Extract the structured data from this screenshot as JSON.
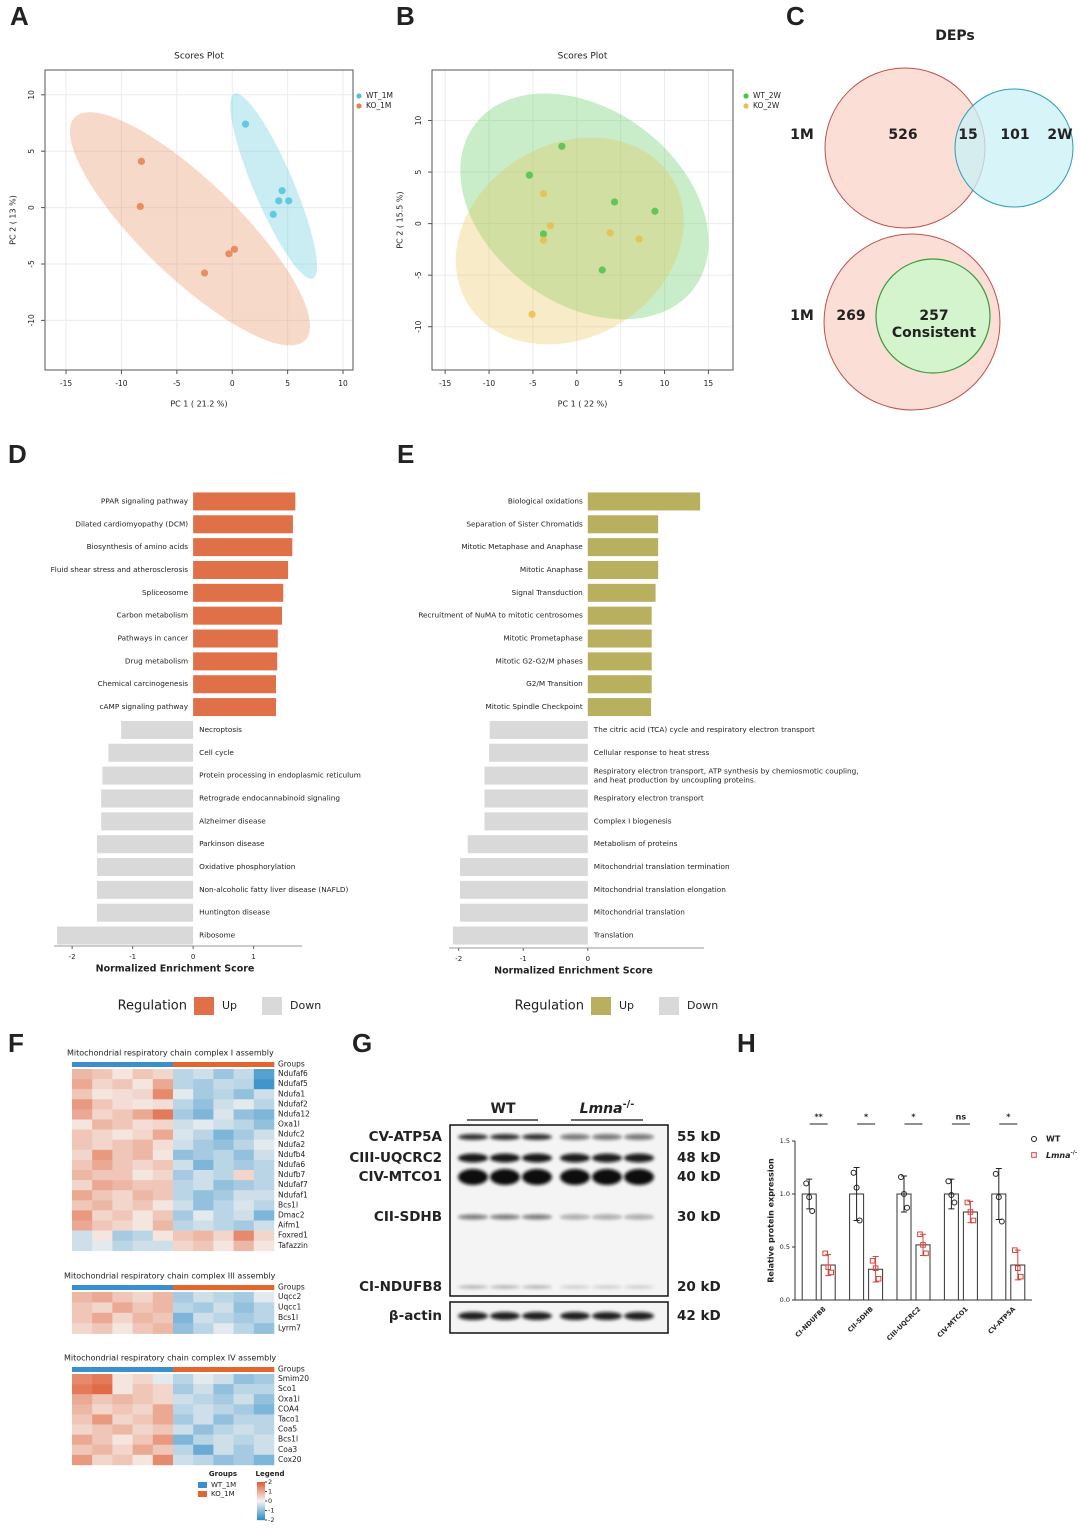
{
  "chart_data": [
    {
      "panel": "A",
      "type": "scatter",
      "title": "Scores Plot",
      "x_label": "PC 1 ( 21.2 %)",
      "y_label": "PC 2 ( 13 %)",
      "xlim": [
        -16.9,
        10.9
      ],
      "ylim": [
        -14.4,
        12.2
      ],
      "xticks": [
        -15,
        -10,
        -5,
        0,
        5,
        10
      ],
      "yticks": [
        -10,
        -5,
        0,
        5,
        10
      ],
      "grid": true,
      "series": [
        {
          "name": "WT_1M",
          "color": "#4fc3dc",
          "x": [
            1.2,
            4.5,
            4.2,
            5.1,
            3.7
          ],
          "y": [
            7.4,
            1.5,
            0.6,
            0.6,
            -0.6
          ]
        },
        {
          "name": "KO_1M",
          "color": "#e5804f",
          "x": [
            -8.2,
            -8.3,
            0.2,
            -0.3,
            -2.5
          ],
          "y": [
            4.1,
            0.1,
            -3.7,
            -4.1,
            -5.8
          ]
        }
      ]
    },
    {
      "panel": "B",
      "type": "scatter",
      "title": "Scores Plot",
      "x_label": "PC 1 ( 22 %)",
      "y_label": "PC 2 ( 15.5 %)",
      "xlim": [
        -16.5,
        17.8
      ],
      "ylim": [
        -14.2,
        14.9
      ],
      "xticks": [
        -15,
        -10,
        -5,
        0,
        5,
        10,
        15
      ],
      "yticks": [
        -10,
        -5,
        0,
        5,
        10
      ],
      "grid": true,
      "series": [
        {
          "name": "WT_2W",
          "color": "#4cc24c",
          "x": [
            -1.7,
            -5.4,
            4.3,
            8.9,
            -3.8,
            2.9
          ],
          "y": [
            7.5,
            4.7,
            2.1,
            1.2,
            -1.0,
            -4.5
          ]
        },
        {
          "name": "KO_2W",
          "color": "#e8c04a",
          "x": [
            -3.8,
            -3.0,
            -3.8,
            3.8,
            7.1,
            -5.1
          ],
          "y": [
            2.9,
            -0.2,
            -1.6,
            -0.9,
            -1.5,
            -8.8
          ]
        }
      ]
    },
    {
      "panel": "C",
      "type": "venn",
      "title": "DEPs",
      "diagrams": [
        {
          "sets": [
            "1M",
            "2W"
          ],
          "values": [
            526,
            15,
            101
          ]
        },
        {
          "sets": [
            "1M"
          ],
          "values": [
            269,
            257
          ],
          "annotation": "Consistent"
        }
      ]
    },
    {
      "panel": "D",
      "type": "bar",
      "orientation": "horizontal",
      "x_label": "Normalized Enrichment Score",
      "xlim": [
        -2.3,
        1.8
      ],
      "xticks": [
        -2,
        -1,
        0,
        1
      ],
      "categories": [
        "PPAR signaling pathway",
        "Dilated cardiomyopathy (DCM)",
        "Biosynthesis of amino acids",
        "Fluid shear stress and atherosclerosis",
        "Spliceosome",
        "Carbon metabolism",
        "Pathways in cancer",
        "Drug metabolism",
        "Chemical carcinogenesis",
        "cAMP signaling pathway",
        "Necroptosis",
        "Cell cycle",
        "Protein processing in endoplasmic reticulum",
        "Retrograde endocannabinoid signaling",
        "Alzheimer disease",
        "Parkinson disease",
        "Oxidative phosphorylation",
        "Non-alcoholic fatty liver disease (NAFLD)",
        "Huntington disease",
        "Ribosome"
      ],
      "values": [
        1.69,
        1.65,
        1.64,
        1.57,
        1.49,
        1.47,
        1.4,
        1.39,
        1.37,
        1.37,
        -1.19,
        -1.4,
        -1.5,
        -1.52,
        -1.52,
        -1.59,
        -1.59,
        -1.59,
        -1.59,
        -2.25
      ],
      "legend": {
        "title": "Regulation",
        "entries": [
          {
            "name": "Up",
            "color": "#e07048"
          },
          {
            "name": "Down",
            "color": "#d9d9d9"
          }
        ]
      }
    },
    {
      "panel": "E",
      "type": "bar",
      "orientation": "horizontal",
      "x_label": "Normalized Enrichment Score",
      "xlim": [
        -2.15,
        1.8
      ],
      "xticks": [
        -2,
        -1,
        0
      ],
      "categories": [
        "Biological oxidations",
        "Separation of Sister Chromatids",
        "Mitotic Metaphase and Anaphase",
        "Mitotic Anaphase",
        "Signal Transduction",
        "Recruitment of NuMA to mitotic centrosomes",
        "Mitotic Prometaphase",
        "Mitotic G2-G2/M phases",
        "G2/M Transition",
        "Mitotic Spindle Checkpoint",
        "The citric acid (TCA) cycle and respiratory electron transport",
        "Cellular response to heat stress",
        "Respiratory electron transport, ATP synthesis by chemiosmotic coupling, and heat production by uncoupling proteins.",
        "Respiratory electron transport",
        "Complex I biogenesis",
        "Metabolism of proteins",
        "Mitochondrial translation termination",
        "Mitochondrial translation elongation",
        "Mitochondrial translation",
        "Translation"
      ],
      "values": [
        1.74,
        1.09,
        1.09,
        1.09,
        1.05,
        0.99,
        0.99,
        0.99,
        0.99,
        0.98,
        -1.52,
        -1.53,
        -1.6,
        -1.6,
        -1.6,
        -1.86,
        -1.98,
        -1.98,
        -1.98,
        -2.09
      ],
      "legend": {
        "title": "Regulation",
        "entries": [
          {
            "name": "Up",
            "color": "#b8b05e"
          },
          {
            "name": "Down",
            "color": "#d9d9d9"
          }
        ]
      }
    },
    {
      "panel": "F",
      "type": "heatmap",
      "column_label": "Groups",
      "column_groups": [
        "WT_1M",
        "WT_1M",
        "WT_1M",
        "WT_1M",
        "WT_1M",
        "KO_1M",
        "KO_1M",
        "KO_1M",
        "KO_1M",
        "KO_1M"
      ],
      "groups": [
        {
          "name": "WT_1M",
          "color": "#3a8fd0"
        },
        {
          "name": "KO_1M",
          "color": "#e4652d"
        }
      ],
      "groups_title": "Groups",
      "legend_title": "Legend",
      "color_lim": [
        -2,
        2
      ],
      "color_ticks": [
        2,
        1,
        0,
        -1,
        -2
      ],
      "blocks": [
        {
          "title": "Mitochondrial respiratory chain complex I assembly",
          "rows": [
            "Ndufaf6",
            "Ndufaf5",
            "Ndufa1",
            "Ndufaf2",
            "Ndufa12",
            "Oxa1l",
            "Ndufc2",
            "Ndufa2",
            "Ndufb4",
            "Ndufa6",
            "Ndufb7",
            "Ndufaf7",
            "Ndufaf1",
            "Bcs1l",
            "Dmac2",
            "Aifm1",
            "Foxred1",
            "Tafazzin"
          ],
          "values": [
            [
              0.8,
              0.6,
              0.2,
              0.6,
              0.4,
              -0.6,
              -0.4,
              -0.9,
              -0.5,
              -1.6
            ],
            [
              1.0,
              0.4,
              0.6,
              0.2,
              1.0,
              -0.6,
              -0.8,
              -0.5,
              -0.6,
              -1.8
            ],
            [
              0.6,
              0.2,
              0.3,
              0.4,
              1.4,
              -0.2,
              -0.8,
              -0.6,
              -1.0,
              -0.4
            ],
            [
              1.2,
              0.6,
              0.3,
              0.2,
              0.3,
              -0.6,
              -1.0,
              -0.4,
              -0.2,
              -0.6
            ],
            [
              1.0,
              0.4,
              0.6,
              1.0,
              1.6,
              -0.8,
              -1.2,
              -0.3,
              -1.0,
              -1.2
            ],
            [
              0.2,
              0.8,
              0.6,
              0.3,
              0.4,
              -0.4,
              -0.2,
              -0.4,
              -0.6,
              -1.0
            ],
            [
              0.6,
              0.4,
              0.2,
              0.4,
              1.0,
              -0.3,
              -0.6,
              -1.2,
              -0.8,
              -0.4
            ],
            [
              0.6,
              0.4,
              0.6,
              0.8,
              0.3,
              -0.4,
              -0.8,
              -1.0,
              -0.6,
              -0.2
            ],
            [
              0.4,
              1.2,
              0.6,
              0.8,
              0.2,
              -1.0,
              -0.8,
              -0.6,
              -1.0,
              -0.4
            ],
            [
              0.6,
              1.0,
              0.6,
              0.4,
              0.6,
              -0.4,
              -1.2,
              -0.6,
              -0.8,
              -0.6
            ],
            [
              0.8,
              0.6,
              0.6,
              0.2,
              0.4,
              -0.8,
              -0.4,
              -0.6,
              0.4,
              -0.6
            ],
            [
              0.4,
              1.0,
              0.8,
              0.6,
              0.6,
              -0.6,
              -0.4,
              -1.0,
              -0.8,
              -0.6
            ],
            [
              1.0,
              0.6,
              0.4,
              0.8,
              0.6,
              -0.6,
              -1.0,
              -0.8,
              -0.4,
              -0.4
            ],
            [
              0.6,
              0.8,
              0.4,
              0.6,
              0.2,
              -0.4,
              -1.0,
              -0.6,
              -0.3,
              -0.6
            ],
            [
              1.2,
              0.4,
              0.6,
              0.2,
              0.6,
              -0.8,
              -0.2,
              -0.6,
              -0.4,
              -1.2
            ],
            [
              1.0,
              0.6,
              0.4,
              0.2,
              0.8,
              -0.6,
              -0.4,
              -0.6,
              -0.8,
              -0.4
            ],
            [
              -0.4,
              0.2,
              -0.8,
              -0.6,
              0.2,
              0.6,
              0.8,
              0.4,
              1.4,
              0.4
            ],
            [
              -0.4,
              -0.2,
              -0.6,
              -0.4,
              -0.4,
              0.4,
              0.6,
              0.2,
              0.8,
              0.2
            ]
          ]
        },
        {
          "title": "Mitochondrial respiratory chain complex III assembly",
          "rows": [
            "Uqcc2",
            "Uqcc1",
            "Bcs1l",
            "Lyrm7"
          ],
          "values": [
            [
              0.8,
              1.0,
              0.6,
              0.4,
              0.8,
              -0.8,
              -0.4,
              -0.6,
              -0.8,
              -0.2
            ],
            [
              0.6,
              0.4,
              1.0,
              0.6,
              0.8,
              -0.6,
              -0.8,
              -0.4,
              -1.0,
              -0.6
            ],
            [
              0.6,
              1.0,
              0.4,
              0.8,
              0.6,
              -1.2,
              -0.4,
              -0.6,
              -0.8,
              -0.6
            ],
            [
              0.4,
              0.6,
              0.2,
              0.6,
              0.8,
              -1.0,
              -0.6,
              -0.2,
              -0.6,
              -1.0
            ]
          ]
        },
        {
          "title": "Mitochondrial respiratory chain complex IV assembly",
          "rows": [
            "Smim20",
            "Sco1",
            "Oxa1l",
            "COA4",
            "Taco1",
            "Coa5",
            "Bcs1l",
            "Coa3",
            "Cox20"
          ],
          "values": [
            [
              1.4,
              1.6,
              0.2,
              0.4,
              -0.2,
              -0.6,
              -0.2,
              -0.4,
              -1.0,
              -0.8
            ],
            [
              1.6,
              1.8,
              0.2,
              0.6,
              0.4,
              -0.8,
              -0.4,
              -1.0,
              -0.6,
              -0.6
            ],
            [
              1.0,
              0.6,
              0.8,
              0.6,
              0.4,
              -0.4,
              -0.6,
              -0.8,
              -0.4,
              -1.0
            ],
            [
              0.8,
              0.4,
              0.6,
              0.4,
              1.0,
              -0.6,
              -0.4,
              -0.6,
              -0.8,
              -1.2
            ],
            [
              0.6,
              1.2,
              0.4,
              0.6,
              1.0,
              -0.8,
              -0.4,
              -1.0,
              -0.6,
              -0.6
            ],
            [
              0.4,
              0.6,
              0.8,
              0.4,
              0.6,
              -0.4,
              -1.0,
              -0.6,
              -0.4,
              -0.6
            ],
            [
              1.0,
              0.6,
              0.2,
              0.6,
              1.2,
              -1.2,
              -0.6,
              -0.4,
              -0.6,
              -0.4
            ],
            [
              0.6,
              0.8,
              0.4,
              1.0,
              0.6,
              -0.6,
              -1.4,
              -0.4,
              -0.8,
              -0.4
            ],
            [
              1.2,
              0.4,
              0.6,
              0.2,
              1.4,
              -0.4,
              -0.6,
              -1.0,
              -0.8,
              -1.2
            ]
          ]
        }
      ]
    },
    {
      "panel": "H",
      "type": "bar",
      "orientation": "vertical",
      "y_label": "Relative protein expression",
      "ylim": [
        0,
        1.5
      ],
      "yticks": [
        {
          "value": 0,
          "label": "0.0"
        },
        0.5,
        {
          "value": 1,
          "label": "1.0"
        },
        1.5
      ],
      "categories": [
        "CI-NDUFB8",
        "CII-SDHB",
        "CIII-UQCRC2",
        "CIV-MTCO1",
        "CV-ATP5A"
      ],
      "annotations": [
        "**",
        "*",
        "*",
        "ns",
        "*"
      ],
      "series": [
        {
          "name": "WT",
          "color": "#222222",
          "marker": "circle",
          "values": [
            1.0,
            1.0,
            1.0,
            1.0,
            1.0
          ],
          "errors": [
            0.14,
            0.25,
            0.17,
            0.14,
            0.24
          ],
          "points": [
            [
              1.1,
              0.97,
              0.84
            ],
            [
              1.2,
              1.06,
              0.75
            ],
            [
              1.16,
              1.0,
              0.87
            ],
            [
              1.12,
              0.99,
              0.92
            ],
            [
              1.19,
              0.97,
              0.74
            ]
          ]
        },
        {
          "name": "Lmna-/-",
          "color": "#d9443a",
          "marker": "square",
          "values": [
            0.33,
            0.29,
            0.52,
            0.83,
            0.33
          ],
          "errors": [
            0.1,
            0.12,
            0.1,
            0.1,
            0.14
          ],
          "points": [
            [
              0.44,
              0.31,
              0.26
            ],
            [
              0.37,
              0.3,
              0.2
            ],
            [
              0.62,
              0.52,
              0.44
            ],
            [
              0.92,
              0.83,
              0.75
            ],
            [
              0.47,
              0.3,
              0.22
            ]
          ]
        }
      ]
    }
  ],
  "blot": {
    "panel": "G",
    "groups": [
      "WT",
      "Lmna-/-"
    ],
    "proteins": [
      "CV-ATP5A",
      "CIII-UQCRC2",
      "CIV-MTCO1",
      "CII-SDHB",
      "CI-NDUFB8",
      "β-actin"
    ],
    "sizes": [
      "55 kD",
      "48 kD",
      "40 kD",
      "30 kD",
      "20 kD",
      "42 kD"
    ]
  }
}
